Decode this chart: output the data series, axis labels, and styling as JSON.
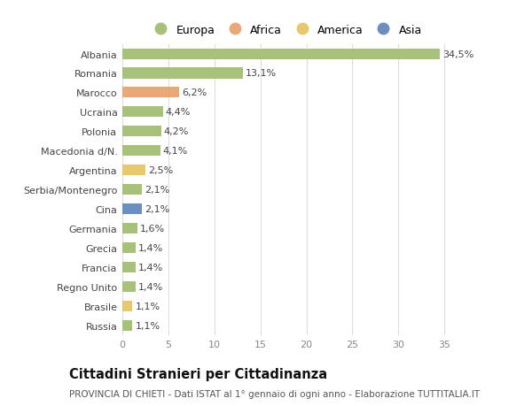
{
  "categories": [
    "Russia",
    "Brasile",
    "Regno Unito",
    "Francia",
    "Grecia",
    "Germania",
    "Cina",
    "Serbia/Montenegro",
    "Argentina",
    "Macedonia d/N.",
    "Polonia",
    "Ucraina",
    "Marocco",
    "Romania",
    "Albania"
  ],
  "values": [
    1.1,
    1.1,
    1.4,
    1.4,
    1.4,
    1.6,
    2.1,
    2.1,
    2.5,
    4.1,
    4.2,
    4.4,
    6.2,
    13.1,
    34.5
  ],
  "labels": [
    "1,1%",
    "1,1%",
    "1,4%",
    "1,4%",
    "1,4%",
    "1,6%",
    "2,1%",
    "2,1%",
    "2,5%",
    "4,1%",
    "4,2%",
    "4,4%",
    "6,2%",
    "13,1%",
    "34,5%"
  ],
  "colors": [
    "#a8c17a",
    "#e8c86e",
    "#a8c17a",
    "#a8c17a",
    "#a8c17a",
    "#a8c17a",
    "#6a8fc0",
    "#a8c17a",
    "#e8c86e",
    "#a8c17a",
    "#a8c17a",
    "#a8c17a",
    "#e8a87a",
    "#a8c17a",
    "#a8c17a"
  ],
  "legend_labels": [
    "Europa",
    "Africa",
    "America",
    "Asia"
  ],
  "legend_colors": [
    "#a8c17a",
    "#e8a87a",
    "#e8c86e",
    "#6a8fc0"
  ],
  "title": "Cittadini Stranieri per Cittadinanza",
  "subtitle": "PROVINCIA DI CHIETI - Dati ISTAT al 1° gennaio di ogni anno - Elaborazione TUTTITALIA.IT",
  "xlim": [
    0,
    37
  ],
  "xticks": [
    0,
    5,
    10,
    15,
    20,
    25,
    30,
    35
  ],
  "background_color": "#ffffff",
  "plot_background": "#ffffff",
  "grid_color": "#dddddd",
  "bar_height": 0.55,
  "label_fontsize": 8.0,
  "tick_fontsize": 8.0,
  "title_fontsize": 10.5,
  "subtitle_fontsize": 7.5
}
